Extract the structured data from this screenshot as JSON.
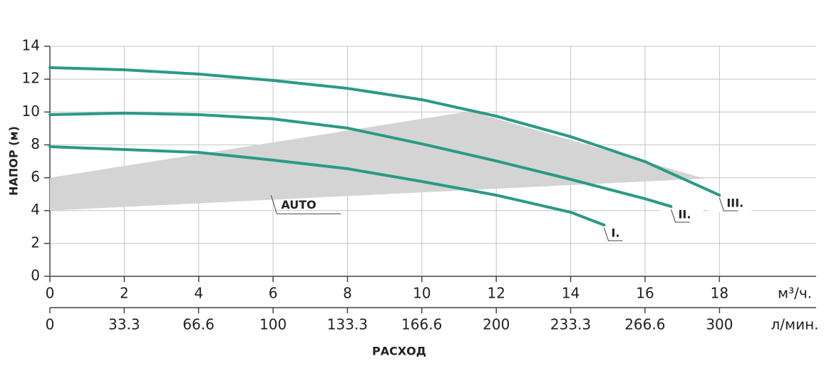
{
  "chart_data": {
    "type": "line",
    "y_label": "НАПОР (м)",
    "x_label": "РАСХОД",
    "x_unit": "м³/ч.",
    "x2_unit": "л/мин.",
    "xlim": [
      0,
      20.6
    ],
    "xticks": [
      0,
      2,
      4,
      6,
      8,
      10,
      12,
      14,
      16,
      18
    ],
    "x2lim": [
      0,
      343.3
    ],
    "x2ticks": [
      0,
      33.3,
      66.6,
      100,
      133.3,
      166.6,
      200,
      233.3,
      266.6,
      300
    ],
    "ylim": [
      0,
      14
    ],
    "yticks": [
      0,
      2,
      4,
      6,
      8,
      10,
      12,
      14
    ],
    "grid": true,
    "auto_zone": {
      "name": "AUTO",
      "color": "#d4d4d4",
      "x": [
        0,
        11.3,
        17.6,
        0
      ],
      "y": [
        6,
        10.05,
        5.95,
        4
      ]
    },
    "series": [
      {
        "name": "I.",
        "color": "#2a9a85",
        "x": [
          0,
          4,
          6,
          8,
          10,
          12,
          14,
          14.9
        ],
        "values": [
          7.89,
          7.54,
          7.07,
          6.55,
          5.77,
          4.94,
          3.9,
          3.12
        ]
      },
      {
        "name": "II.",
        "color": "#2a9a85",
        "x": [
          0,
          2,
          4,
          6,
          8,
          10,
          12,
          14,
          16,
          16.7
        ],
        "values": [
          9.84,
          9.93,
          9.84,
          9.58,
          9.02,
          8.06,
          7.02,
          5.9,
          4.72,
          4.25
        ]
      },
      {
        "name": "III.",
        "color": "#2a9a85",
        "x": [
          0,
          2,
          4,
          6,
          8,
          10,
          12,
          14,
          16,
          18
        ],
        "values": [
          12.7,
          12.57,
          12.31,
          11.92,
          11.44,
          10.75,
          9.75,
          8.5,
          6.98,
          4.94
        ]
      }
    ]
  }
}
